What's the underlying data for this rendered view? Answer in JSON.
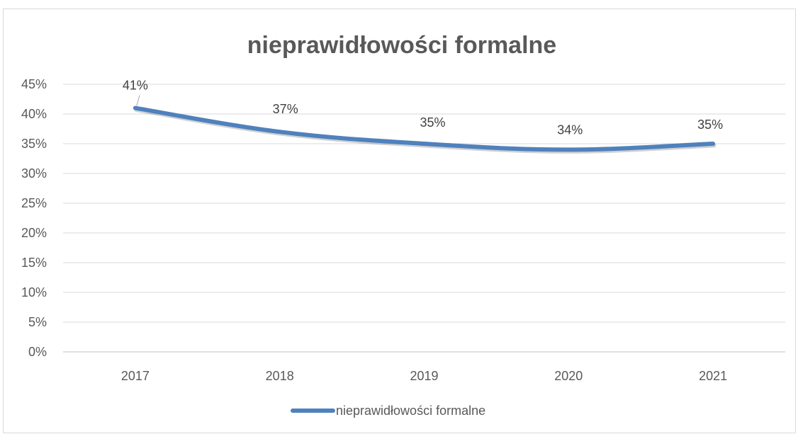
{
  "chart_data": {
    "type": "line",
    "title": "nieprawidłowości formalne",
    "categories": [
      "2017",
      "2018",
      "2019",
      "2020",
      "2021"
    ],
    "series": [
      {
        "name": "nieprawidłowości formalne",
        "values": [
          41,
          37,
          35,
          34,
          35
        ],
        "labels": [
          "41%",
          "37%",
          "35%",
          "34%",
          "35%"
        ],
        "color": "#4f81bd"
      }
    ],
    "yticks": [
      "0%",
      "5%",
      "10%",
      "15%",
      "20%",
      "25%",
      "30%",
      "35%",
      "40%",
      "45%"
    ],
    "ylim": [
      0,
      45
    ],
    "grid": true,
    "legend": "bottom"
  }
}
